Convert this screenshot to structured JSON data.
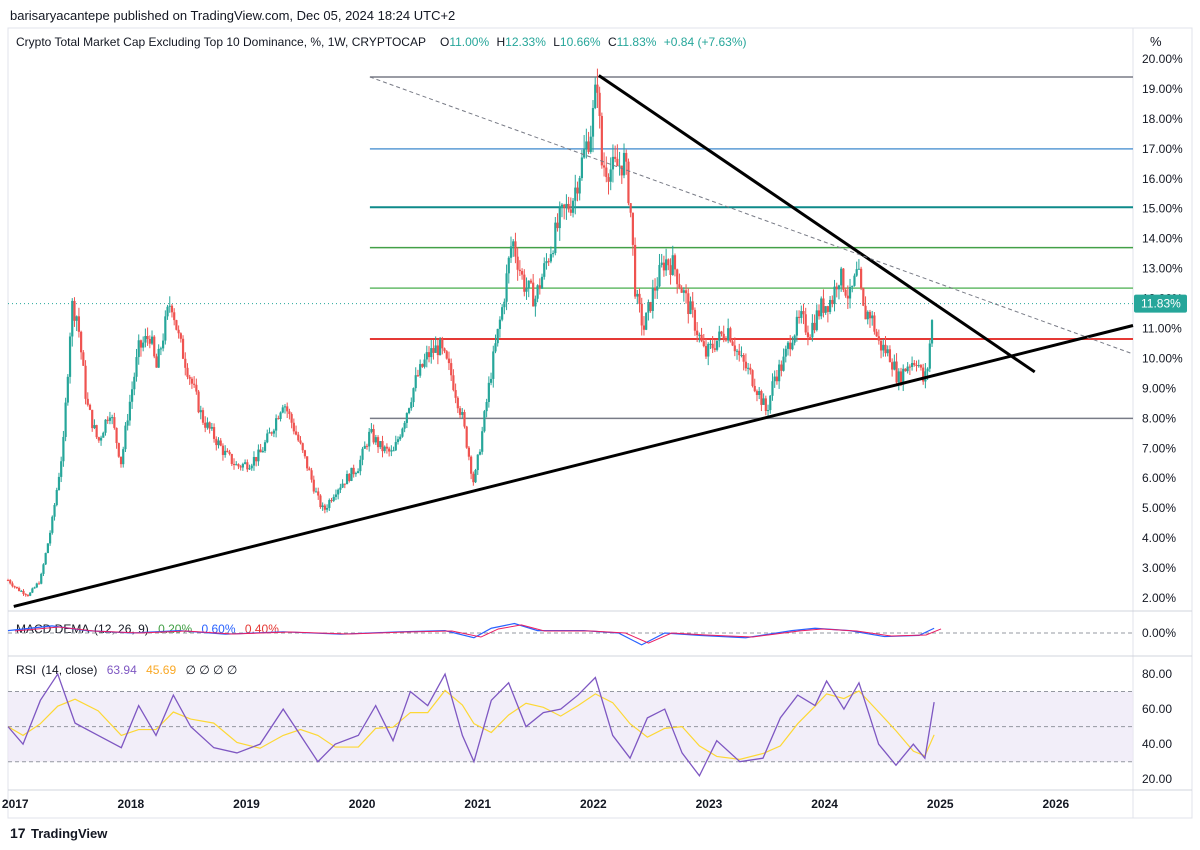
{
  "publisher_line": "barisaryacantepe published on TradingView.com, Dec 05, 2024 18:24 UTC+2",
  "legend": {
    "title": "Crypto Total Market Cap Excluding Top 10 Dominance, %, 1W, CRYPTOCAP",
    "o_label": "O",
    "o_value": "11.00%",
    "h_label": "H",
    "h_value": "12.33%",
    "l_label": "L",
    "l_value": "10.66%",
    "c_label": "C",
    "c_value": "11.83%",
    "change": "+0.84 (+7.63%)"
  },
  "scale_unit": "%",
  "current_price_label": "11.83%",
  "macd_legend": {
    "name": "MACD DEMA",
    "params": "12, 26, 9",
    "v1": "0.20%",
    "v2": "0.60%",
    "v3": "0.40%"
  },
  "rsi_legend": {
    "name": "RSI",
    "params": "14, close",
    "v1": "63.94",
    "v2": "45.69",
    "na": "∅ ∅ ∅ ∅"
  },
  "footer_logo": "TradingView",
  "colors": {
    "up": "#26a69a",
    "down": "#ef5350",
    "trend": "#000000",
    "level_blue": "#5b9bd5",
    "level_teal": "#0e8a8a",
    "level_green": "#43a047",
    "level_lightgreen": "#66bb6a",
    "level_red": "#e53935",
    "level_gray": "#787b86",
    "macd": "#2962ff",
    "signal": "#ff6d00",
    "rsi": "#7e57c2",
    "rsi_ma": "#fdd835"
  },
  "chart_data": {
    "type": "line",
    "title": "Crypto Total Market Cap Excluding Top 10 Dominance, %, 1W, CRYPTOCAP",
    "xlabel": "",
    "ylabel": "",
    "x_ticks": [
      "2017",
      "2018",
      "2019",
      "2020",
      "2021",
      "2022",
      "2023",
      "2024",
      "2025",
      "2026"
    ],
    "y_ticks": [
      "20.00%",
      "19.00%",
      "18.00%",
      "17.00%",
      "16.00%",
      "15.00%",
      "14.00%",
      "13.00%",
      "12.00%",
      "11.00%",
      "10.00%",
      "9.00%",
      "8.00%",
      "7.00%",
      "6.00%",
      "5.00%",
      "4.00%",
      "3.00%",
      "2.00%"
    ],
    "ylim": [
      1.6,
      20.1
    ],
    "xlim": [
      2016.92,
      2026.65
    ],
    "series": [
      {
        "values": [
          [
            2016.92,
            2.6
          ],
          [
            2017.0,
            2.3
          ],
          [
            2017.1,
            2.1
          ],
          [
            2017.2,
            2.6
          ],
          [
            2017.3,
            4.5
          ],
          [
            2017.4,
            7.2
          ],
          [
            2017.47,
            11.8
          ],
          [
            2017.52,
            11.4
          ],
          [
            2017.6,
            8.5
          ],
          [
            2017.7,
            7.2
          ],
          [
            2017.8,
            8.3
          ],
          [
            2017.9,
            6.5
          ],
          [
            2017.95,
            8.0
          ],
          [
            2018.05,
            10.3
          ],
          [
            2018.15,
            10.8
          ],
          [
            2018.2,
            9.6
          ],
          [
            2018.3,
            11.5
          ],
          [
            2018.33,
            12.0
          ],
          [
            2018.4,
            10.6
          ],
          [
            2018.5,
            9.3
          ],
          [
            2018.6,
            8.0
          ],
          [
            2018.7,
            7.4
          ],
          [
            2018.8,
            6.8
          ],
          [
            2018.9,
            6.4
          ],
          [
            2019.0,
            6.5
          ],
          [
            2019.1,
            6.8
          ],
          [
            2019.2,
            7.6
          ],
          [
            2019.3,
            8.6
          ],
          [
            2019.4,
            7.6
          ],
          [
            2019.5,
            6.5
          ],
          [
            2019.6,
            5.3
          ],
          [
            2019.65,
            4.9
          ],
          [
            2019.75,
            5.6
          ],
          [
            2019.85,
            6.0
          ],
          [
            2019.95,
            6.4
          ],
          [
            2020.05,
            7.5
          ],
          [
            2020.15,
            7.0
          ],
          [
            2020.25,
            6.8
          ],
          [
            2020.35,
            8.0
          ],
          [
            2020.45,
            9.3
          ],
          [
            2020.55,
            10.1
          ],
          [
            2020.65,
            10.4
          ],
          [
            2020.75,
            9.5
          ],
          [
            2020.85,
            8.0
          ],
          [
            2020.95,
            5.8
          ],
          [
            2021.02,
            7.5
          ],
          [
            2021.1,
            9.6
          ],
          [
            2021.2,
            11.8
          ],
          [
            2021.28,
            14.0
          ],
          [
            2021.38,
            12.5
          ],
          [
            2021.48,
            12.0
          ],
          [
            2021.6,
            13.5
          ],
          [
            2021.7,
            14.7
          ],
          [
            2021.8,
            15.3
          ],
          [
            2021.9,
            16.8
          ],
          [
            2021.97,
            17.8
          ],
          [
            2022.02,
            19.4
          ],
          [
            2022.05,
            16.5
          ],
          [
            2022.15,
            16.3
          ],
          [
            2022.25,
            16.6
          ],
          [
            2022.3,
            15.2
          ],
          [
            2022.35,
            12.0
          ],
          [
            2022.42,
            11.0
          ],
          [
            2022.5,
            12.2
          ],
          [
            2022.6,
            13.3
          ],
          [
            2022.68,
            13.1
          ],
          [
            2022.75,
            12.3
          ],
          [
            2022.85,
            11.3
          ],
          [
            2022.95,
            10.1
          ],
          [
            2023.05,
            10.6
          ],
          [
            2023.15,
            11.0
          ],
          [
            2023.25,
            10.0
          ],
          [
            2023.35,
            9.4
          ],
          [
            2023.42,
            8.8
          ],
          [
            2023.48,
            8.2
          ],
          [
            2023.55,
            9.4
          ],
          [
            2023.62,
            9.8
          ],
          [
            2023.7,
            10.8
          ],
          [
            2023.78,
            11.3
          ],
          [
            2023.85,
            10.9
          ],
          [
            2023.95,
            11.7
          ],
          [
            2024.05,
            12.0
          ],
          [
            2024.1,
            12.8
          ],
          [
            2024.15,
            12.5
          ],
          [
            2024.2,
            12.0
          ],
          [
            2024.27,
            12.9
          ],
          [
            2024.32,
            11.5
          ],
          [
            2024.38,
            11.5
          ],
          [
            2024.45,
            10.5
          ],
          [
            2024.55,
            10.1
          ],
          [
            2024.62,
            9.3
          ],
          [
            2024.7,
            9.8
          ],
          [
            2024.78,
            10.0
          ],
          [
            2024.84,
            9.2
          ],
          [
            2024.87,
            9.6
          ],
          [
            2024.9,
            10.8
          ],
          [
            2024.93,
            11.83
          ]
        ]
      }
    ],
    "horizontal_levels": [
      19.4,
      17.0,
      15.05,
      13.7,
      12.35,
      10.65,
      8.0
    ],
    "trendlines": [
      {
        "from": [
          2016.97,
          1.72
        ],
        "to": [
          2026.65,
          11.1
        ]
      },
      {
        "from": [
          2022.03,
          19.45
        ],
        "to": [
          2025.8,
          9.55
        ]
      },
      {
        "from": [
          2020.05,
          19.4
        ],
        "to": [
          2026.65,
          10.15
        ],
        "dashed": true
      }
    ],
    "macd": {
      "ylim": [
        -0.8,
        0.8
      ],
      "y_ticks": [
        "0.00%"
      ],
      "values": [
        [
          2016.92,
          0.1
        ],
        [
          2017.3,
          0.3
        ],
        [
          2017.6,
          0.1
        ],
        [
          2018.0,
          0.0
        ],
        [
          2018.4,
          0.1
        ],
        [
          2018.8,
          -0.05
        ],
        [
          2019.3,
          0.05
        ],
        [
          2019.8,
          -0.05
        ],
        [
          2020.3,
          0.05
        ],
        [
          2020.7,
          0.1
        ],
        [
          2020.95,
          -0.2
        ],
        [
          2021.1,
          0.2
        ],
        [
          2021.3,
          0.4
        ],
        [
          2021.5,
          0.1
        ],
        [
          2021.9,
          0.1
        ],
        [
          2022.2,
          0.0
        ],
        [
          2022.4,
          -0.5
        ],
        [
          2022.6,
          0.0
        ],
        [
          2022.9,
          -0.1
        ],
        [
          2023.3,
          -0.2
        ],
        [
          2023.7,
          0.1
        ],
        [
          2023.9,
          0.2
        ],
        [
          2024.2,
          0.1
        ],
        [
          2024.5,
          -0.15
        ],
        [
          2024.8,
          -0.1
        ],
        [
          2024.93,
          0.2
        ]
      ]
    },
    "rsi": {
      "ylim": [
        15,
        88
      ],
      "y_ticks": [
        "80.00",
        "60.00",
        "40.00",
        "20.00"
      ],
      "upper_band": 70,
      "lower_band": 30,
      "mid": 50,
      "values": [
        [
          2016.92,
          50
        ],
        [
          2017.05,
          40
        ],
        [
          2017.2,
          65
        ],
        [
          2017.35,
          80
        ],
        [
          2017.5,
          52
        ],
        [
          2017.7,
          45
        ],
        [
          2017.9,
          38
        ],
        [
          2018.05,
          62
        ],
        [
          2018.2,
          45
        ],
        [
          2018.35,
          68
        ],
        [
          2018.5,
          50
        ],
        [
          2018.7,
          38
        ],
        [
          2018.9,
          35
        ],
        [
          2019.1,
          40
        ],
        [
          2019.3,
          60
        ],
        [
          2019.45,
          45
        ],
        [
          2019.6,
          30
        ],
        [
          2019.75,
          40
        ],
        [
          2019.95,
          45
        ],
        [
          2020.1,
          62
        ],
        [
          2020.25,
          42
        ],
        [
          2020.4,
          70
        ],
        [
          2020.55,
          62
        ],
        [
          2020.7,
          80
        ],
        [
          2020.85,
          45
        ],
        [
          2020.95,
          30
        ],
        [
          2021.1,
          65
        ],
        [
          2021.25,
          75
        ],
        [
          2021.4,
          50
        ],
        [
          2021.55,
          58
        ],
        [
          2021.7,
          60
        ],
        [
          2021.85,
          68
        ],
        [
          2022.0,
          78
        ],
        [
          2022.15,
          45
        ],
        [
          2022.3,
          32
        ],
        [
          2022.45,
          55
        ],
        [
          2022.6,
          60
        ],
        [
          2022.75,
          35
        ],
        [
          2022.9,
          22
        ],
        [
          2023.05,
          42
        ],
        [
          2023.25,
          30
        ],
        [
          2023.45,
          32
        ],
        [
          2023.6,
          55
        ],
        [
          2023.75,
          68
        ],
        [
          2023.9,
          62
        ],
        [
          2024.0,
          76
        ],
        [
          2024.15,
          60
        ],
        [
          2024.28,
          75
        ],
        [
          2024.45,
          40
        ],
        [
          2024.6,
          28
        ],
        [
          2024.75,
          40
        ],
        [
          2024.85,
          32
        ],
        [
          2024.93,
          64
        ]
      ]
    }
  }
}
